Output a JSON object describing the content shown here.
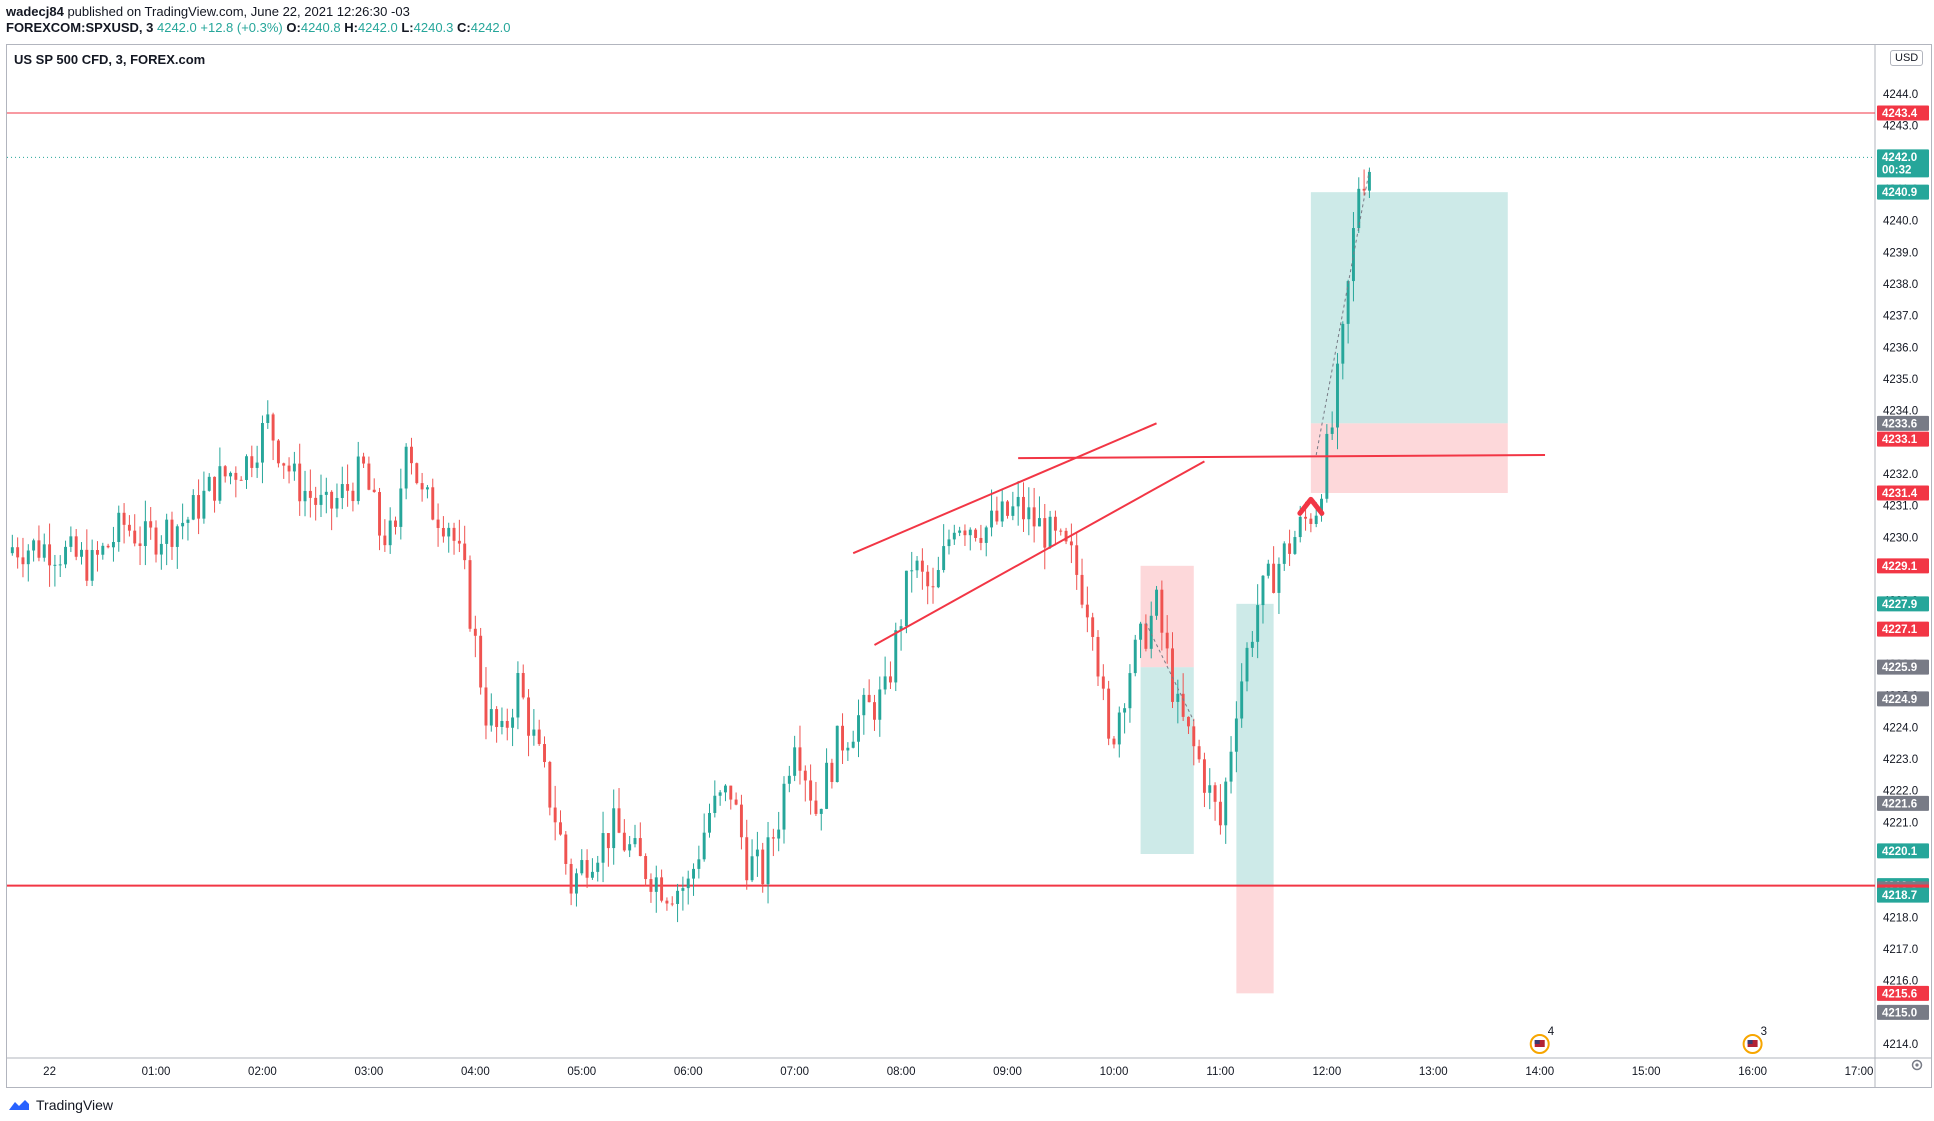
{
  "header": {
    "author": "wadecj84",
    "published": "published on TradingView.com, June 22, 2021 12:26:30 -03",
    "symbol": "FOREXCOM:SPXUSD, 3",
    "price": "4242.0",
    "change": "+12.8 (+0.3%)",
    "o_label": "O:",
    "o_value": "4240.8",
    "h_label": "H:",
    "h_value": "4242.0",
    "l_label": "L:",
    "l_value": "4240.3",
    "c_label": "C:",
    "c_value": "4242.0"
  },
  "chart_title": "US SP 500 CFD, 3, FOREX.com",
  "currency_badge": "USD",
  "footer": {
    "brand": "TradingView"
  },
  "colors": {
    "up": "#26a69a",
    "down": "#ef5350",
    "line": "#f23645",
    "gray_tag": "#787b86",
    "zone_green": "#b2dfdb",
    "zone_red": "#fccbcd"
  },
  "chart_data": {
    "type": "candlestick",
    "timeframe": "3",
    "ylim": [
      4214.0,
      4244.0
    ],
    "y_ticks": [
      "4214.0",
      "4215.0",
      "4216.0",
      "4217.0",
      "4218.0",
      "4219.0",
      "4220.0",
      "4221.0",
      "4222.0",
      "4223.0",
      "4224.0",
      "4225.0",
      "4226.0",
      "4227.0",
      "4228.0",
      "4229.0",
      "4230.0",
      "4231.0",
      "4232.0",
      "4233.0",
      "4234.0",
      "4235.0",
      "4236.0",
      "4237.0",
      "4238.0",
      "4239.0",
      "4240.0",
      "4241.0",
      "4242.0",
      "4243.0",
      "4244.0"
    ],
    "x_ticks": [
      "22",
      "01:00",
      "02:00",
      "03:00",
      "04:00",
      "05:00",
      "06:00",
      "07:00",
      "08:00",
      "09:00",
      "10:00",
      "11:00",
      "12:00",
      "13:00",
      "14:00",
      "15:00",
      "16:00",
      "17:00"
    ],
    "x_tick_hours": [
      0,
      1,
      2,
      3,
      4,
      5,
      6,
      7,
      8,
      9,
      10,
      11,
      12,
      13,
      14,
      15,
      16,
      17
    ],
    "x_range_hours": [
      -0.4,
      17.15
    ],
    "price_anchors": [
      [
        0.0,
        4229.7
      ],
      [
        0.4,
        4229.1
      ],
      [
        0.7,
        4230.4
      ],
      [
        0.9,
        4229.9
      ],
      [
        1.3,
        4230.6
      ],
      [
        1.55,
        4231.7
      ],
      [
        1.85,
        4232.4
      ],
      [
        2.05,
        4233.6
      ],
      [
        2.3,
        4231.8
      ],
      [
        2.6,
        4230.8
      ],
      [
        2.95,
        4232.1
      ],
      [
        3.1,
        4230.2
      ],
      [
        3.25,
        4229.9
      ],
      [
        3.35,
        4233.4
      ],
      [
        3.5,
        4231.2
      ],
      [
        3.75,
        4230.5
      ],
      [
        3.9,
        4228.7
      ],
      [
        4.1,
        4224.5
      ],
      [
        4.25,
        4223.6
      ],
      [
        4.4,
        4225.4
      ],
      [
        4.6,
        4223.0
      ],
      [
        4.75,
        4221.2
      ],
      [
        4.9,
        4219.0
      ],
      [
        5.05,
        4219.9
      ],
      [
        5.3,
        4220.8
      ],
      [
        5.55,
        4219.7
      ],
      [
        5.8,
        4218.9
      ],
      [
        6.0,
        4219.0
      ],
      [
        6.2,
        4221.3
      ],
      [
        6.4,
        4222.0
      ],
      [
        6.55,
        4219.8
      ],
      [
        6.7,
        4219.4
      ],
      [
        6.85,
        4221.2
      ],
      [
        7.0,
        4223.9
      ],
      [
        7.2,
        4221.4
      ],
      [
        7.4,
        4223.4
      ],
      [
        7.6,
        4224.3
      ],
      [
        7.85,
        4225.0
      ],
      [
        8.1,
        4229.2
      ],
      [
        8.3,
        4228.1
      ],
      [
        8.5,
        4230.6
      ],
      [
        8.8,
        4230.3
      ],
      [
        9.1,
        4230.9
      ],
      [
        9.35,
        4230.2
      ],
      [
        9.6,
        4229.3
      ],
      [
        9.8,
        4227.5
      ],
      [
        9.95,
        4223.3
      ],
      [
        10.15,
        4225.9
      ],
      [
        10.4,
        4227.8
      ],
      [
        10.6,
        4224.5
      ],
      [
        10.8,
        4222.9
      ],
      [
        11.0,
        4220.9
      ],
      [
        11.15,
        4224.8
      ],
      [
        11.35,
        4227.9
      ],
      [
        11.55,
        4229.2
      ],
      [
        11.75,
        4230.3
      ],
      [
        11.9,
        4231.0
      ],
      [
        12.05,
        4233.5
      ],
      [
        12.15,
        4236.2
      ],
      [
        12.3,
        4241.2
      ],
      [
        12.45,
        4242.0
      ]
    ],
    "horizontal_lines": [
      {
        "price": 4243.4,
        "style": "thin"
      },
      {
        "price": 4219.0,
        "style": "thick"
      }
    ],
    "current_price_line": 4242.0,
    "trend_lines": [
      {
        "from": [
          7.55,
          4229.5
        ],
        "to": [
          10.4,
          4233.6
        ]
      },
      {
        "from": [
          7.75,
          4226.6
        ],
        "to": [
          10.85,
          4232.4
        ]
      },
      {
        "from": [
          9.1,
          4232.5
        ],
        "to": [
          14.05,
          4232.6
        ]
      }
    ],
    "positions": [
      {
        "x_from": 10.25,
        "x_to": 10.75,
        "entry": 4225.9,
        "target": 4220.0,
        "stop": 4229.1,
        "direction": "short"
      },
      {
        "x_from": 11.15,
        "x_to": 11.5,
        "entry": 4219.0,
        "target": 4227.9,
        "stop": 4215.6,
        "direction": "long"
      },
      {
        "x_from": 11.85,
        "x_to": 13.7,
        "entry": 4233.6,
        "target": 4240.9,
        "stop": 4231.4,
        "direction": "long"
      }
    ],
    "arrow": {
      "x": 11.85,
      "price": 4231.2,
      "direction": "up"
    },
    "price_tags": [
      {
        "value": "4243.4",
        "color": "#f23645"
      },
      {
        "value": "4242.0",
        "sub": "00:32",
        "color": "#26a69a"
      },
      {
        "value": "4240.9",
        "color": "#26a69a"
      },
      {
        "value": "4233.6",
        "color": "#787b86"
      },
      {
        "value": "4233.1",
        "color": "#f23645"
      },
      {
        "value": "4231.4",
        "color": "#f23645"
      },
      {
        "value": "4229.1",
        "color": "#f23645"
      },
      {
        "value": "4227.9",
        "color": "#26a69a"
      },
      {
        "value": "4227.1",
        "color": "#f23645"
      },
      {
        "value": "4225.9",
        "color": "#787b86"
      },
      {
        "value": "4224.9",
        "color": "#787b86"
      },
      {
        "value": "4221.6",
        "color": "#787b86"
      },
      {
        "value": "4220.1",
        "color": "#26a69a"
      },
      {
        "value": "4219.0",
        "color": "#26a69a"
      },
      {
        "value": "4218.9",
        "color": "#787b86"
      },
      {
        "value": "4218.8",
        "color": "#f23645"
      },
      {
        "value": "4218.7",
        "color": "#26a69a"
      },
      {
        "value": "4215.6",
        "color": "#f23645"
      },
      {
        "value": "4215.0",
        "color": "#787b86"
      }
    ],
    "events": [
      {
        "x": 14.0,
        "count": "4"
      },
      {
        "x": 16.0,
        "count": "3"
      }
    ]
  }
}
